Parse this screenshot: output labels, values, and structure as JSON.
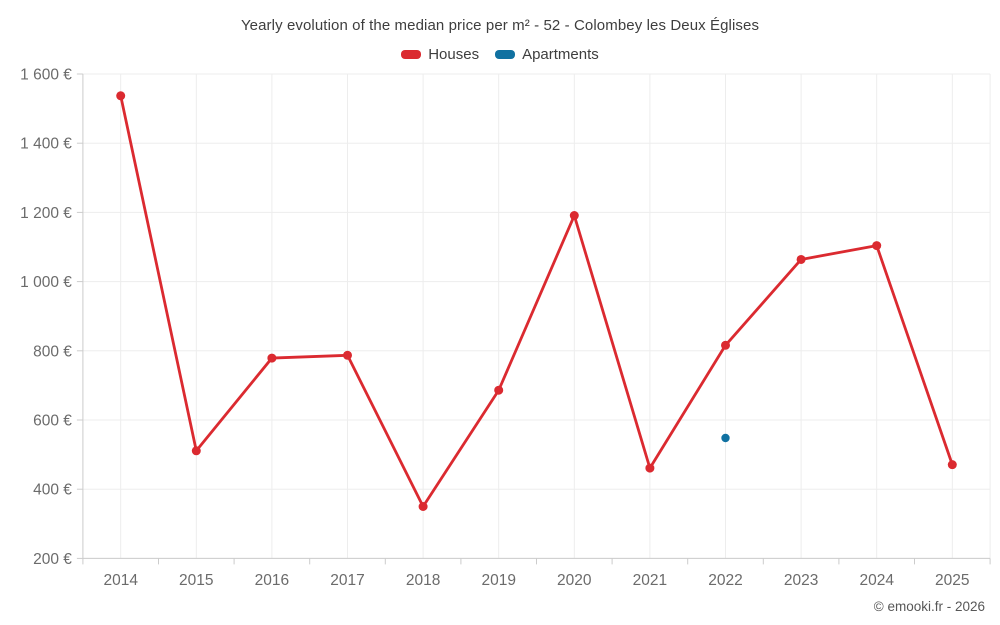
{
  "title": "Yearly evolution of the median price per m² - 52 - Colombey les Deux Églises",
  "legend": [
    {
      "label": "Houses",
      "color": "#db2a30"
    },
    {
      "label": "Apartments",
      "color": "#1071a1"
    }
  ],
  "footer": "© emooki.fr - 2026",
  "colors": {
    "houses": "#db2a30",
    "apartments": "#1071a1",
    "grid": "#ededed",
    "axis": "#cccccc",
    "axis_label": "#6b6b6b",
    "title_text": "#3e3e3e",
    "background": "#ffffff"
  },
  "chart_data": {
    "type": "line",
    "title": "Yearly evolution of the median price per m² - 52 - Colombey les Deux Églises",
    "x": [
      2014,
      2015,
      2016,
      2017,
      2018,
      2019,
      2020,
      2021,
      2022,
      2023,
      2024,
      2025
    ],
    "series": [
      {
        "name": "Houses",
        "color": "#db2a30",
        "values": [
          1537,
          511,
          779,
          787,
          350,
          686,
          1191,
          461,
          816,
          1064,
          1104,
          471
        ]
      },
      {
        "name": "Apartments",
        "color": "#1071a1",
        "values": [
          null,
          null,
          null,
          null,
          null,
          null,
          null,
          null,
          548,
          null,
          null,
          null
        ]
      }
    ],
    "xlabel": "",
    "ylabel": "",
    "ylim": [
      200,
      1600
    ],
    "yticks": [
      200,
      400,
      600,
      800,
      1000,
      1200,
      1400,
      1600
    ],
    "ytick_labels": [
      "200 €",
      "400 €",
      "600 €",
      "800 €",
      "1 000 €",
      "1 200 €",
      "1 400 €",
      "1 600 €"
    ],
    "grid": true,
    "legend_position": "top",
    "marker": "circle"
  }
}
